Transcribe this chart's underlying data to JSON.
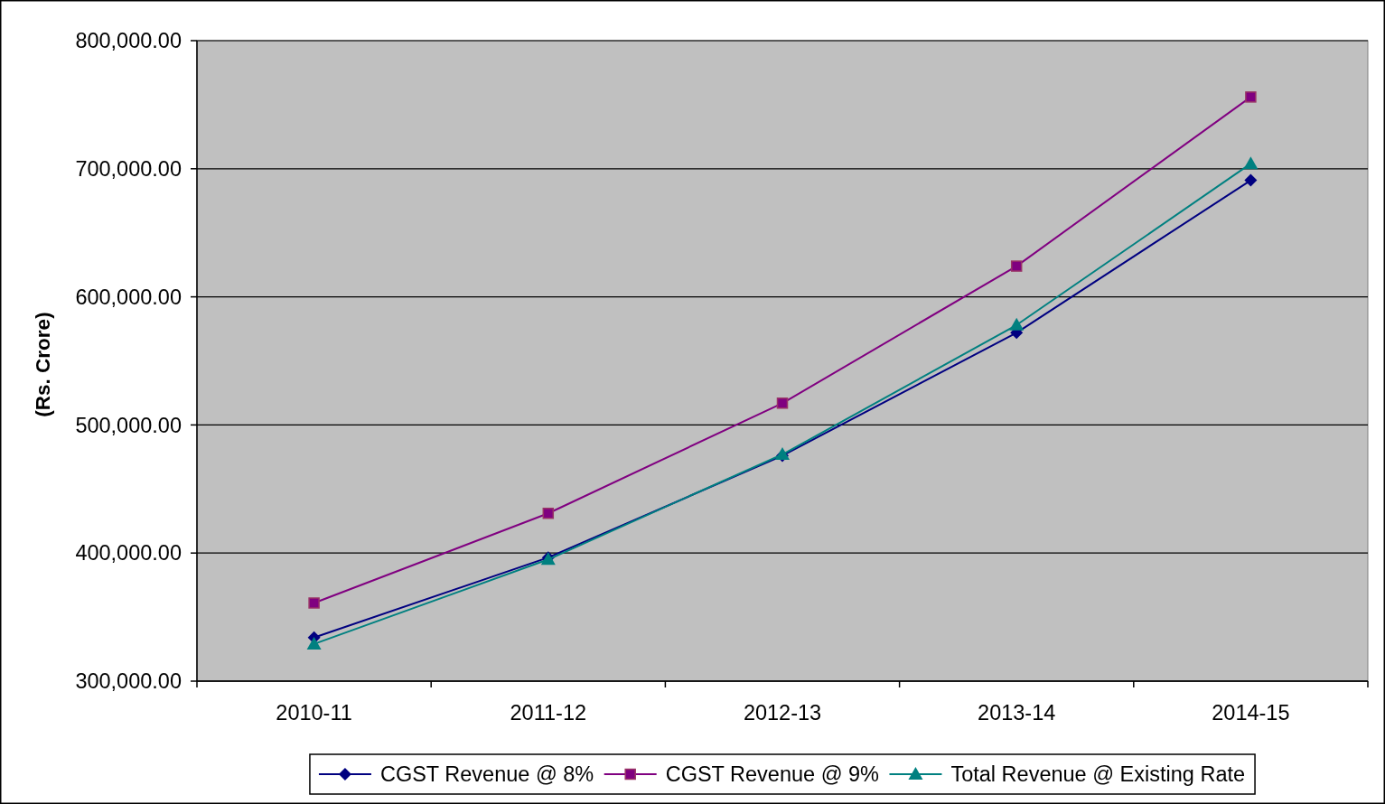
{
  "chart_data": {
    "type": "line",
    "ylabel": "(Rs. Crore)",
    "categories": [
      "2010-11",
      "2011-12",
      "2012-13",
      "2013-14",
      "2014-15"
    ],
    "series": [
      {
        "name": "CGST Revenue @ 8%",
        "color": "#000080",
        "marker": "diamond",
        "values": [
          334000,
          396500,
          476000,
          572000,
          691000
        ]
      },
      {
        "name": "CGST Revenue @ 9%",
        "color": "#800080",
        "marker": "square",
        "values": [
          361000,
          431000,
          517000,
          624000,
          756000
        ]
      },
      {
        "name": "Total Revenue @ Existing Rate",
        "color": "#008080",
        "marker": "triangle",
        "values": [
          329000,
          395000,
          477000,
          578000,
          704000
        ]
      }
    ],
    "ylim": [
      300000,
      800000
    ],
    "yticks": [
      {
        "value": 300000,
        "label": "300,000.00"
      },
      {
        "value": 400000,
        "label": "400,000.00"
      },
      {
        "value": 500000,
        "label": "500,000.00"
      },
      {
        "value": 600000,
        "label": "600,000.00"
      },
      {
        "value": 700000,
        "label": "700,000.00"
      },
      {
        "value": 800000,
        "label": "800,000.00"
      }
    ],
    "grid": "y",
    "legend": "bottom",
    "line_style": "solid"
  }
}
